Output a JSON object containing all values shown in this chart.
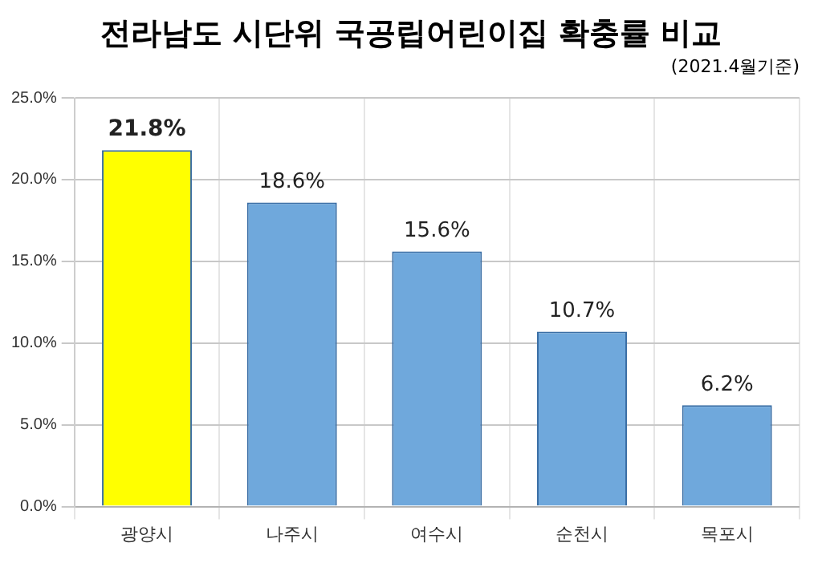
{
  "chart_data": {
    "type": "bar",
    "title": "전라남도 시단위 국공립어린이집 확충률 비교",
    "subtitle": "(2021.4월기준)",
    "categories": [
      "광양시",
      "나주시",
      "여수시",
      "순천시",
      "목포시"
    ],
    "values": [
      21.8,
      18.6,
      15.6,
      10.7,
      6.2
    ],
    "value_labels": [
      "21.8%",
      "18.6%",
      "15.6%",
      "10.7%",
      "6.2%"
    ],
    "colors": [
      "#ffff00",
      "#6fa8dc",
      "#6fa8dc",
      "#6fa8dc",
      "#6fa8dc"
    ],
    "ylim": [
      0,
      25
    ],
    "yticks": [
      {
        "value": 0,
        "label": "0.0%"
      },
      {
        "value": 5,
        "label": "5.0%"
      },
      {
        "value": 10,
        "label": "10.0%"
      },
      {
        "value": 15,
        "label": "15.0%"
      },
      {
        "value": 20,
        "label": "20.0%"
      },
      {
        "value": 25,
        "label": "25.0%"
      }
    ],
    "grid": true,
    "legend": false
  }
}
